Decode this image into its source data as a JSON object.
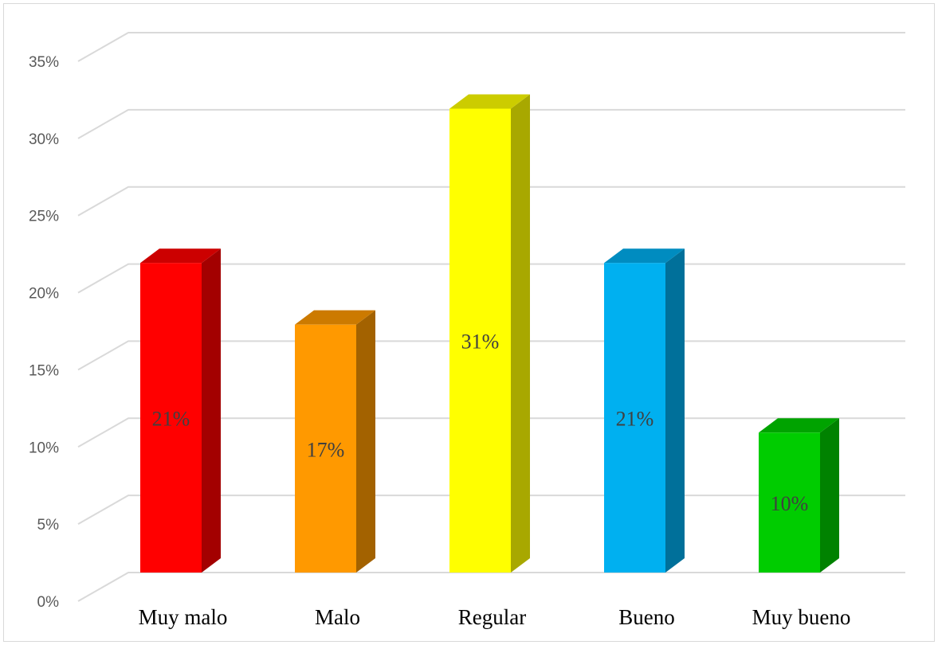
{
  "chart_data": {
    "type": "bar",
    "style": "3d-column",
    "categories": [
      "Muy malo",
      "Malo",
      "Regular",
      "Bueno",
      "Muy bueno"
    ],
    "values": [
      21,
      17,
      31,
      21,
      10
    ],
    "data_labels": [
      "21%",
      "17%",
      "31%",
      "21%",
      "10%"
    ],
    "ylim": [
      0,
      35
    ],
    "yticks": [
      "0%",
      "5%",
      "10%",
      "15%",
      "20%",
      "25%",
      "30%",
      "35%"
    ],
    "title": "",
    "xlabel": "",
    "ylabel": "",
    "grid": true,
    "legend": "none",
    "colors": [
      {
        "front": "#ff0000",
        "top": "#cc0000",
        "side": "#a30000"
      },
      {
        "front": "#ff9900",
        "top": "#cc7a00",
        "side": "#a36200"
      },
      {
        "front": "#ffff00",
        "top": "#cccc00",
        "side": "#a8a800"
      },
      {
        "front": "#00b0f0",
        "top": "#008cc0",
        "side": "#00709a"
      },
      {
        "front": "#00cc00",
        "top": "#00a300",
        "side": "#008200"
      }
    ]
  }
}
